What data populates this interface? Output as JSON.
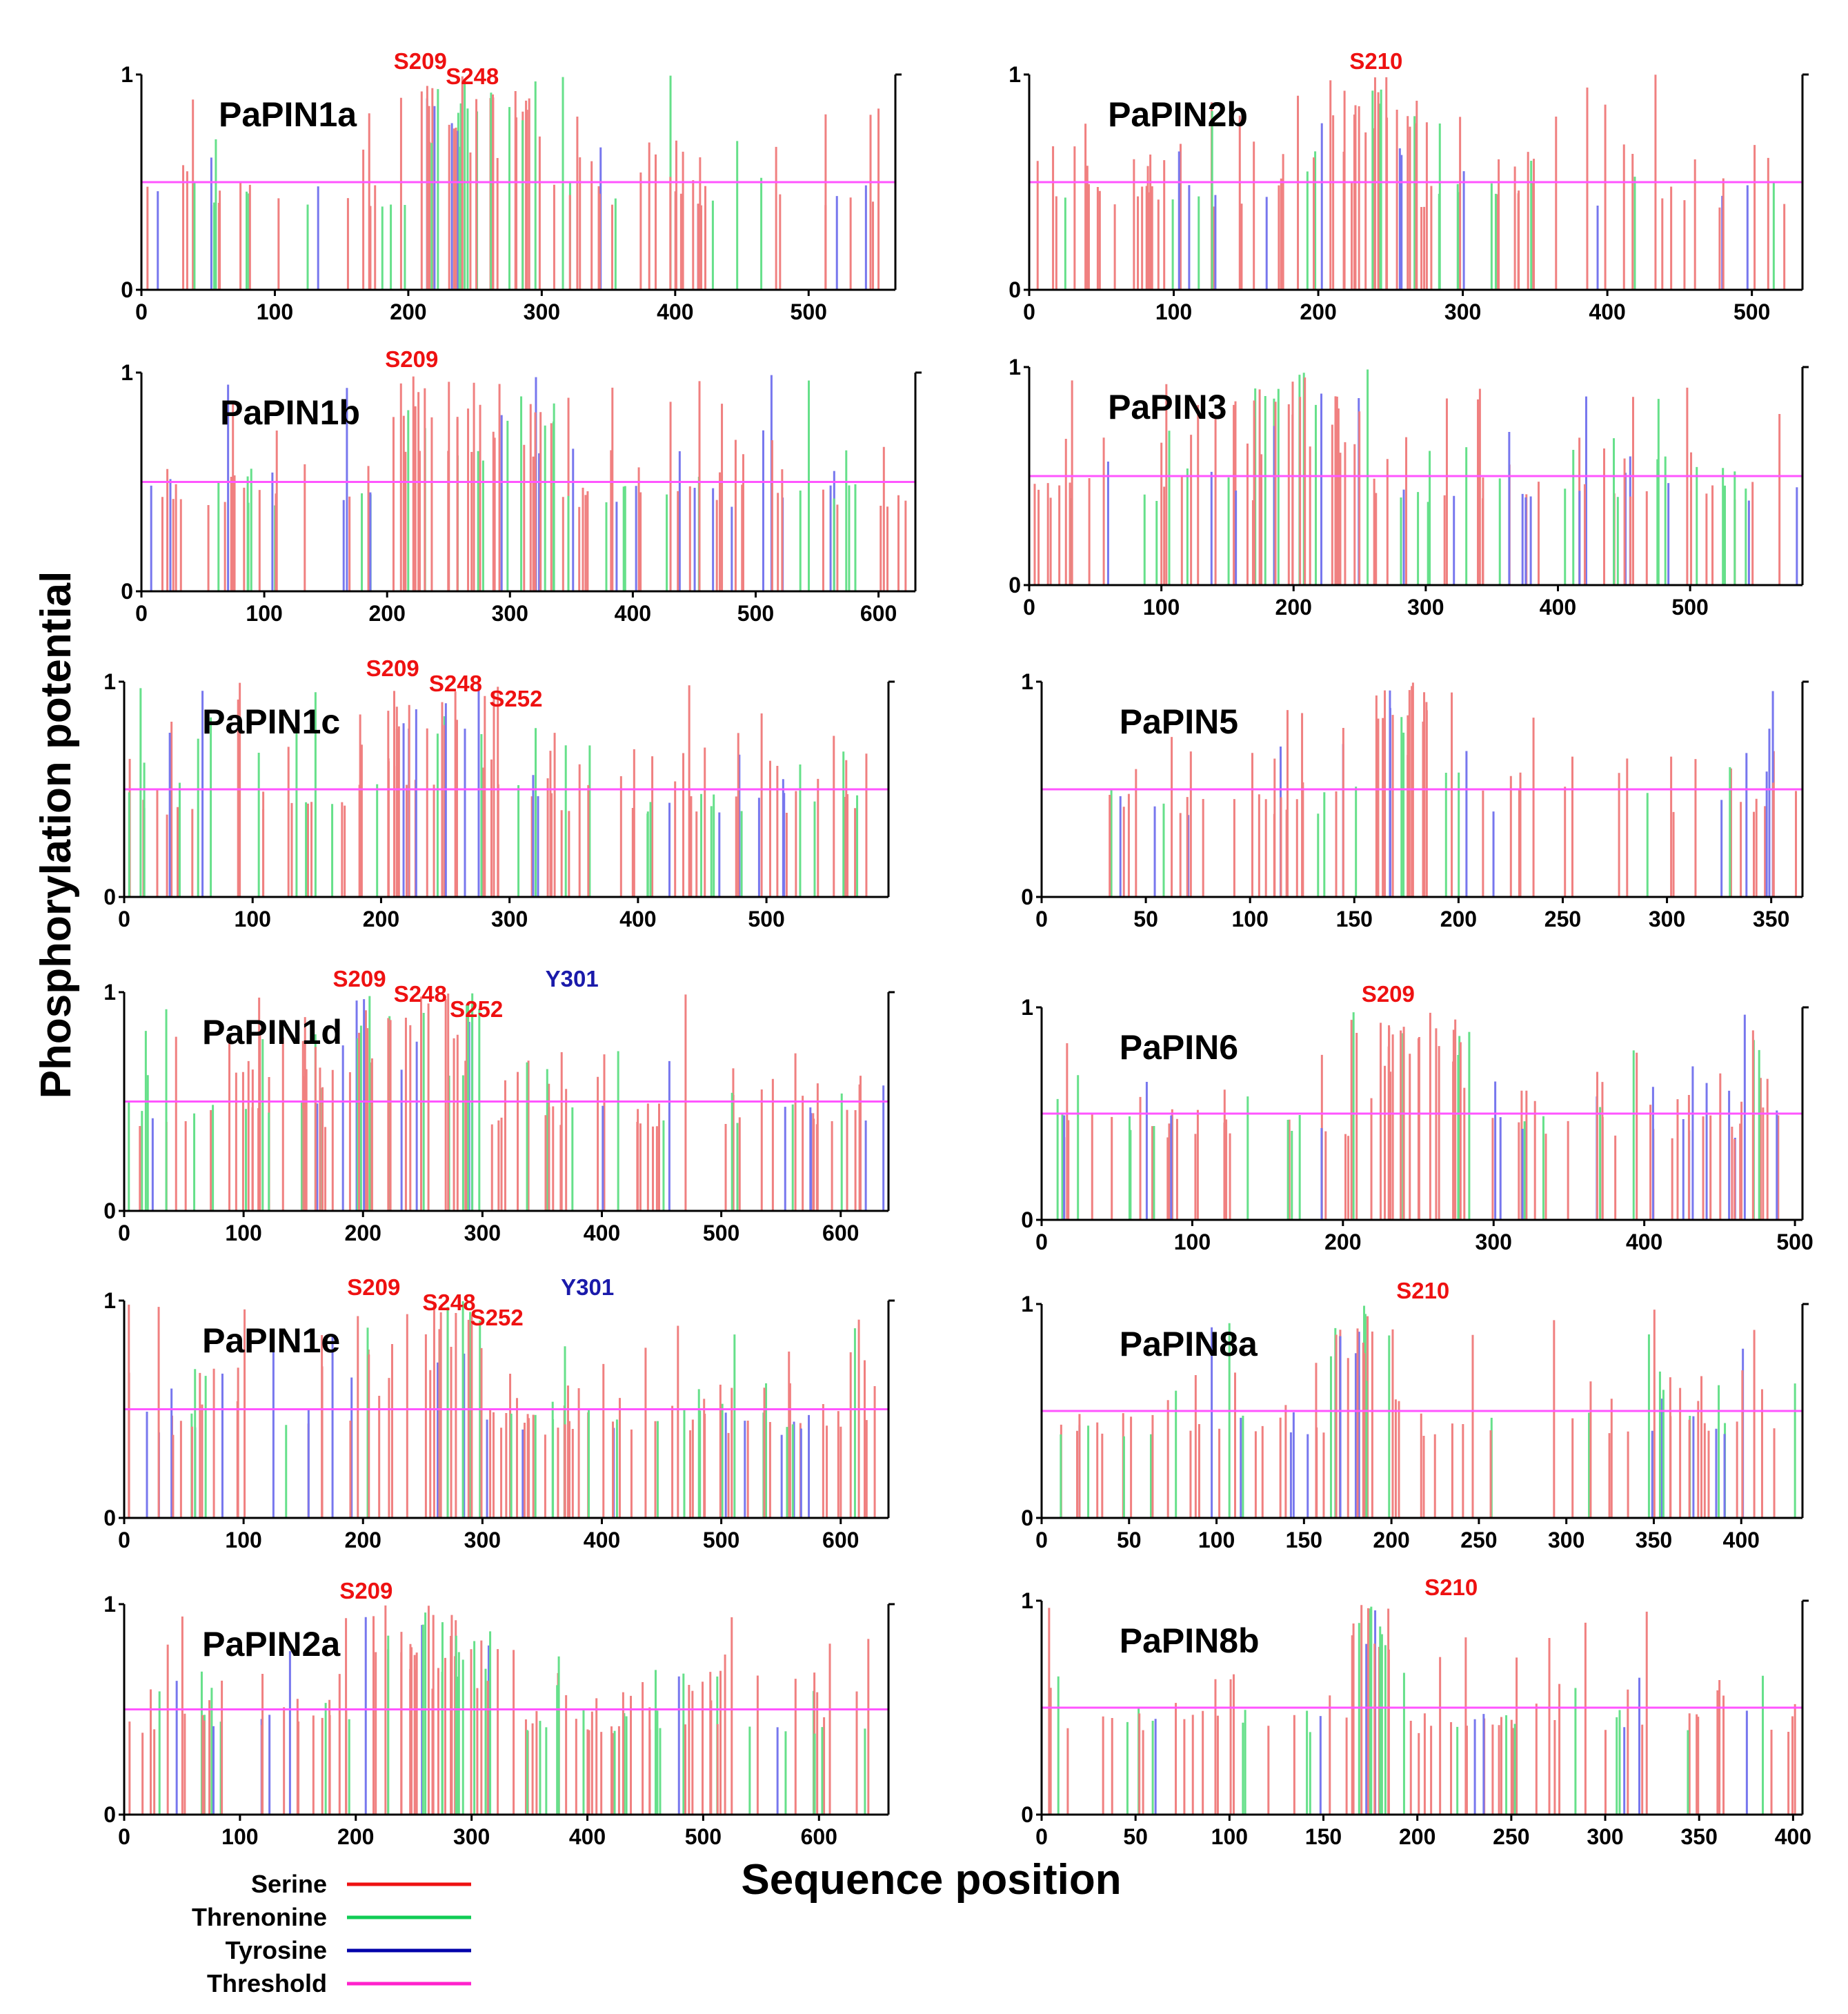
{
  "colors": {
    "serine": "#f08080",
    "threonine": "#66e08a",
    "tyrosine": "#7777ee",
    "threshold": "#ff55ff",
    "site_serine": "#ee1111",
    "site_tyrosine": "#1a1aaa",
    "legend_serine": "#ee1111",
    "legend_threonine": "#11cc55",
    "legend_tyrosine": "#0000aa",
    "legend_threshold": "#ff22cc"
  },
  "figure": {
    "ylabel": "Phosphorylation potential",
    "xlabel": "Sequence position"
  },
  "legend": [
    {
      "label": "Serine",
      "color_key": "legend_serine"
    },
    {
      "label": "Threnonine",
      "color_key": "legend_threonine"
    },
    {
      "label": "Tyrosine",
      "color_key": "legend_tyrosine"
    },
    {
      "label": "Threshold",
      "color_key": "legend_threshold"
    }
  ],
  "chart_data": [
    {
      "type": "bar",
      "name": "PaPIN1a",
      "title": "PaPIN1a",
      "xlim": [
        0,
        565
      ],
      "xticks": [
        0,
        100,
        200,
        300,
        400,
        500
      ],
      "yticks": [
        0,
        1
      ],
      "ylim": [
        0,
        1
      ],
      "threshold": 0.5,
      "seed": 11,
      "n_residues": 95,
      "hotspots": [
        [
          200,
          300,
          0.7
        ]
      ],
      "sites": [
        {
          "label": "S209",
          "x": 209,
          "residue": "serine"
        },
        {
          "label": "S248",
          "x": 248,
          "residue": "serine"
        }
      ]
    },
    {
      "type": "bar",
      "name": "PaPIN2b",
      "title": "PaPIN2b",
      "xlim": [
        0,
        535
      ],
      "xticks": [
        0,
        100,
        200,
        300,
        400,
        500
      ],
      "yticks": [
        0,
        1
      ],
      "ylim": [
        0,
        1
      ],
      "threshold": 0.5,
      "seed": 12,
      "n_residues": 95,
      "hotspots": [
        [
          180,
          270,
          0.8
        ]
      ],
      "sites": [
        {
          "label": "S210",
          "x": 240,
          "residue": "serine"
        }
      ]
    },
    {
      "type": "bar",
      "name": "PaPIN1b",
      "title": "PaPIN1b",
      "xlim": [
        0,
        630
      ],
      "xticks": [
        0,
        100,
        200,
        300,
        400,
        500,
        600
      ],
      "yticks": [
        0,
        1
      ],
      "ylim": [
        0,
        1
      ],
      "threshold": 0.5,
      "seed": 13,
      "n_residues": 115,
      "hotspots": [
        [
          200,
          340,
          0.8
        ]
      ],
      "sites": [
        {
          "label": "S209",
          "x": 220,
          "residue": "serine"
        }
      ]
    },
    {
      "type": "bar",
      "name": "PaPIN3",
      "title": "PaPIN3",
      "xlim": [
        0,
        585
      ],
      "xticks": [
        0,
        100,
        200,
        300,
        400,
        500
      ],
      "yticks": [
        0,
        1
      ],
      "ylim": [
        0,
        1
      ],
      "threshold": 0.5,
      "seed": 14,
      "n_residues": 110,
      "hotspots": [
        [
          170,
          250,
          0.85
        ]
      ],
      "sites": []
    },
    {
      "type": "bar",
      "name": "PaPIN1c",
      "title": "PaPIN1c",
      "xlim": [
        0,
        595
      ],
      "xticks": [
        0,
        100,
        200,
        300,
        400,
        500
      ],
      "yticks": [
        0,
        1
      ],
      "ylim": [
        0,
        1
      ],
      "threshold": 0.5,
      "seed": 15,
      "n_residues": 110,
      "hotspots": [
        [
          200,
          300,
          0.8
        ]
      ],
      "sites": [
        {
          "label": "S209",
          "x": 209,
          "residue": "serine"
        },
        {
          "label": "S248",
          "x": 258,
          "residue": "serine"
        },
        {
          "label": "S252",
          "x": 305,
          "residue": "serine"
        }
      ]
    },
    {
      "type": "bar",
      "name": "PaPIN5",
      "title": "PaPIN5",
      "xlim": [
        0,
        365
      ],
      "xticks": [
        0,
        50,
        100,
        150,
        200,
        250,
        300,
        350
      ],
      "yticks": [
        0,
        1
      ],
      "ylim": [
        0,
        1
      ],
      "threshold": 0.5,
      "seed": 16,
      "n_residues": 70,
      "hotspots": [
        [
          160,
          185,
          0.8
        ]
      ],
      "sites": []
    },
    {
      "type": "bar",
      "name": "PaPIN1d",
      "title": "PaPIN1d",
      "xlim": [
        0,
        640
      ],
      "xticks": [
        0,
        100,
        200,
        300,
        400,
        500,
        600
      ],
      "yticks": [
        0,
        1
      ],
      "ylim": [
        0,
        1
      ],
      "threshold": 0.5,
      "seed": 17,
      "n_residues": 120,
      "hotspots": [
        [
          190,
          300,
          0.75
        ]
      ],
      "sites": [
        {
          "label": "S209",
          "x": 197,
          "residue": "serine"
        },
        {
          "label": "S248",
          "x": 248,
          "residue": "serine"
        },
        {
          "label": "S252",
          "x": 295,
          "residue": "serine"
        },
        {
          "label": "Y301",
          "x": 375,
          "residue": "tyrosine"
        }
      ]
    },
    {
      "type": "bar",
      "name": "PaPIN6",
      "title": "PaPIN6",
      "xlim": [
        0,
        505
      ],
      "xticks": [
        0,
        100,
        200,
        300,
        400,
        500
      ],
      "yticks": [
        0,
        1
      ],
      "ylim": [
        0,
        1
      ],
      "threshold": 0.5,
      "seed": 18,
      "n_residues": 100,
      "hotspots": [
        [
          205,
          290,
          0.75
        ]
      ],
      "sites": [
        {
          "label": "S209",
          "x": 230,
          "residue": "serine"
        }
      ]
    },
    {
      "type": "bar",
      "name": "PaPIN1e",
      "title": "PaPIN1e",
      "xlim": [
        0,
        640
      ],
      "xticks": [
        0,
        100,
        200,
        300,
        400,
        500,
        600
      ],
      "yticks": [
        0,
        1
      ],
      "ylim": [
        0,
        1
      ],
      "threshold": 0.5,
      "seed": 19,
      "n_residues": 120,
      "hotspots": [
        [
          190,
          300,
          0.75
        ]
      ],
      "sites": [
        {
          "label": "S209",
          "x": 209,
          "residue": "serine"
        },
        {
          "label": "S248",
          "x": 272,
          "residue": "serine"
        },
        {
          "label": "S252",
          "x": 312,
          "residue": "serine"
        },
        {
          "label": "Y301",
          "x": 388,
          "residue": "tyrosine"
        }
      ]
    },
    {
      "type": "bar",
      "name": "PaPIN8a",
      "title": "PaPIN8a",
      "xlim": [
        0,
        435
      ],
      "xticks": [
        0,
        50,
        100,
        150,
        200,
        250,
        300,
        350,
        400
      ],
      "yticks": [
        0,
        1
      ],
      "ylim": [
        0,
        1
      ],
      "threshold": 0.5,
      "seed": 20,
      "n_residues": 85,
      "hotspots": [
        [
          165,
          190,
          0.85
        ]
      ],
      "sites": [
        {
          "label": "S210",
          "x": 218,
          "residue": "serine"
        }
      ]
    },
    {
      "type": "bar",
      "name": "PaPIN2a",
      "title": "PaPIN2a",
      "xlim": [
        0,
        660
      ],
      "xticks": [
        0,
        100,
        200,
        300,
        400,
        500,
        600
      ],
      "yticks": [
        0,
        1
      ],
      "ylim": [
        0,
        1
      ],
      "threshold": 0.5,
      "seed": 21,
      "n_residues": 125,
      "hotspots": [
        [
          200,
          340,
          0.75
        ]
      ],
      "sites": [
        {
          "label": "S209",
          "x": 209,
          "residue": "serine"
        }
      ]
    },
    {
      "type": "bar",
      "name": "PaPIN8b",
      "title": "PaPIN8b",
      "xlim": [
        0,
        405
      ],
      "xticks": [
        0,
        50,
        100,
        150,
        200,
        250,
        300,
        350,
        400
      ],
      "yticks": [
        0,
        1
      ],
      "ylim": [
        0,
        1
      ],
      "threshold": 0.5,
      "seed": 22,
      "n_residues": 80,
      "hotspots": [
        [
          165,
          185,
          0.85
        ]
      ],
      "sites": [
        {
          "label": "S210",
          "x": 218,
          "residue": "serine"
        }
      ]
    }
  ]
}
